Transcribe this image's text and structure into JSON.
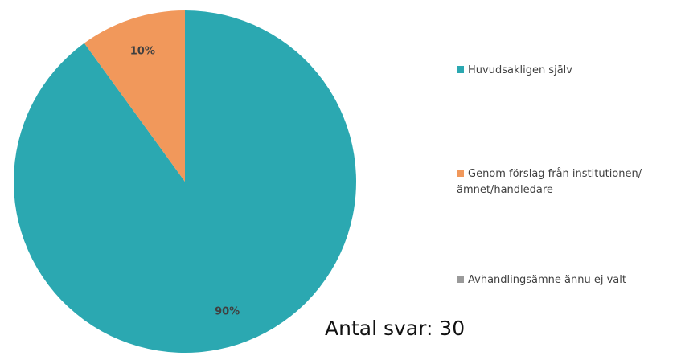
{
  "chart_data": {
    "type": "pie",
    "categories": [
      "Huvudsakligen själv",
      "Genom förslag från institutionen/ämnet/handledare",
      "Avhandlingsämne ännu ej valt"
    ],
    "values": [
      90,
      10,
      0
    ],
    "value_labels": [
      "90%",
      "10%",
      null
    ],
    "colors": [
      "#2ba8b1",
      "#f1985b",
      "#9a9a9a"
    ],
    "annotation": "Antal svar: 30"
  }
}
